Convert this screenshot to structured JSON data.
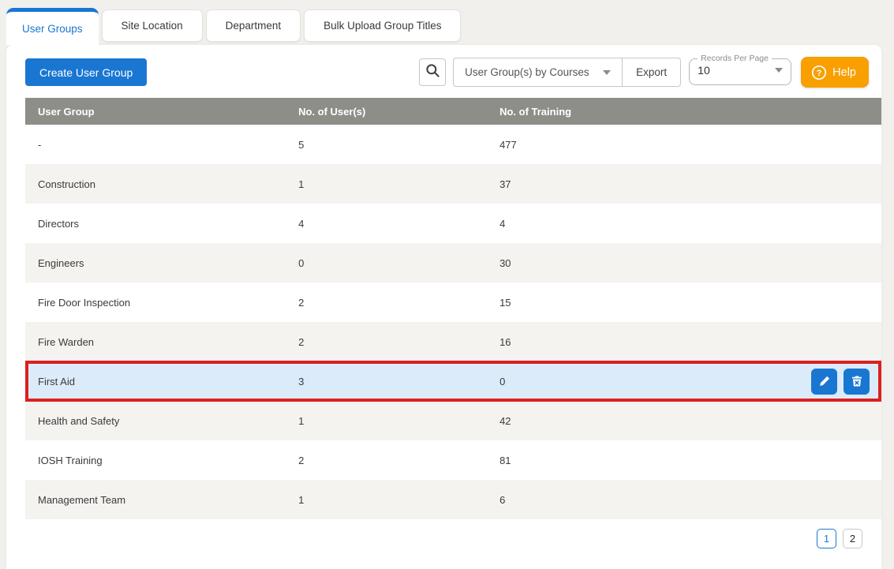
{
  "tabs": [
    {
      "label": "User Groups",
      "active": true
    },
    {
      "label": "Site Location",
      "active": false
    },
    {
      "label": "Department",
      "active": false
    },
    {
      "label": "Bulk Upload Group Titles",
      "active": false
    }
  ],
  "toolbar": {
    "create_button_label": "Create User Group",
    "search_icon": "magnifier-icon",
    "export_dropdown_selected": "User Group(s) by Courses",
    "export_button_label": "Export",
    "records_per_page_label": "Records Per Page",
    "records_per_page_value": "10",
    "help_button_label": "Help",
    "help_icon": "question-circle-icon"
  },
  "table": {
    "columns": [
      "User Group",
      "No. of User(s)",
      "No. of Training"
    ],
    "rows": [
      {
        "name": "-",
        "users": "5",
        "trainings": "477",
        "highlighted": false
      },
      {
        "name": "Construction",
        "users": "1",
        "trainings": "37",
        "highlighted": false
      },
      {
        "name": "Directors",
        "users": "4",
        "trainings": "4",
        "highlighted": false
      },
      {
        "name": "Engineers",
        "users": "0",
        "trainings": "30",
        "highlighted": false
      },
      {
        "name": "Fire Door Inspection",
        "users": "2",
        "trainings": "15",
        "highlighted": false
      },
      {
        "name": "Fire Warden",
        "users": "2",
        "trainings": "16",
        "highlighted": false
      },
      {
        "name": "First Aid",
        "users": "3",
        "trainings": "0",
        "highlighted": true
      },
      {
        "name": "Health and Safety",
        "users": "1",
        "trainings": "42",
        "highlighted": false
      },
      {
        "name": "IOSH Training",
        "users": "2",
        "trainings": "81",
        "highlighted": false
      },
      {
        "name": "Management Team",
        "users": "1",
        "trainings": "6",
        "highlighted": false
      }
    ],
    "row_action_icons": [
      "edit-pencil-icon",
      "delete-trash-icon"
    ]
  },
  "pagination": {
    "pages": [
      "1",
      "2"
    ],
    "current": "1"
  },
  "colors": {
    "accent_blue": "#1977d2",
    "help_orange": "#f99f00",
    "highlight_border_red": "#d9201f",
    "highlight_row_blue": "#dcebfa",
    "table_header_gray": "#8e8e88",
    "stripe_gray": "#f4f3f0",
    "page_background": "#f1f0ed"
  }
}
